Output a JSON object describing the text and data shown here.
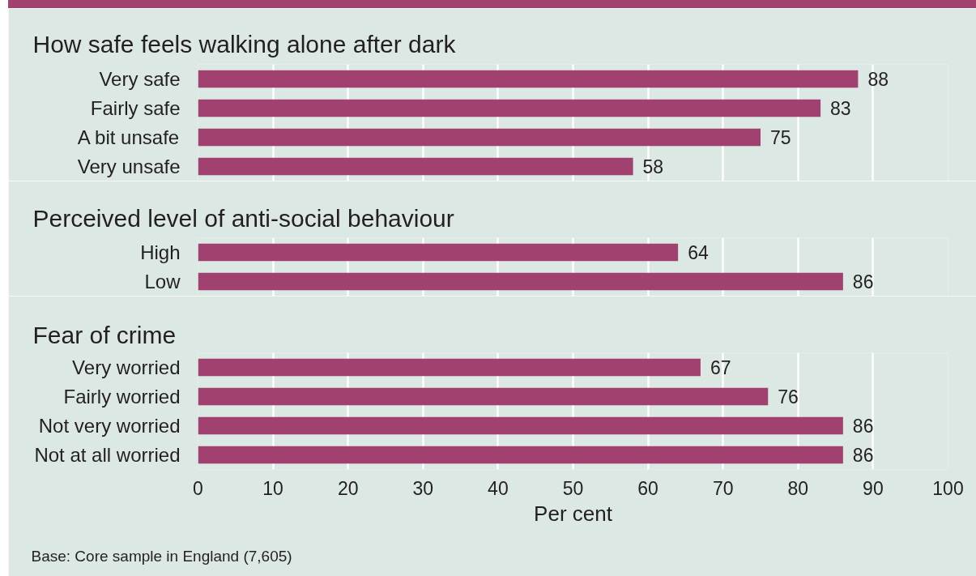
{
  "chart_data": [
    {
      "type": "bar",
      "orientation": "horizontal",
      "title": "How safe feels walking alone after dark",
      "categories": [
        "Very safe",
        "Fairly safe",
        "A bit unsafe",
        "Very unsafe"
      ],
      "values": [
        88,
        83,
        75,
        58
      ],
      "color": "#a1416f",
      "xlim": [
        0,
        100
      ],
      "xticks": [
        0,
        10,
        20,
        30,
        40,
        50,
        60,
        70,
        80,
        90,
        100
      ],
      "grid": "x",
      "data_labels": true,
      "tick_labels": "y"
    },
    {
      "type": "bar",
      "orientation": "horizontal",
      "title": "Perceived level of anti-social behaviour",
      "categories": [
        "High",
        "Low"
      ],
      "values": [
        64,
        86
      ],
      "color": "#a1416f",
      "xlim": [
        0,
        100
      ],
      "xticks": [
        0,
        10,
        20,
        30,
        40,
        50,
        60,
        70,
        80,
        90,
        100
      ],
      "grid": "x",
      "data_labels": true,
      "tick_labels": "y"
    },
    {
      "type": "bar",
      "orientation": "horizontal",
      "title": "Fear of crime",
      "categories": [
        "Very worried",
        "Fairly worried",
        "Not very worried",
        "Not at all worried"
      ],
      "values": [
        67,
        76,
        86,
        86
      ],
      "color": "#a1416f",
      "xlim": [
        0,
        100
      ],
      "xticks": [
        0,
        10,
        20,
        30,
        40,
        50,
        60,
        70,
        80,
        90,
        100
      ],
      "grid": "x",
      "data_labels": true,
      "xlabel": "Per cent",
      "annotations": [
        "Base: Core sample in England (7,605)"
      ]
    }
  ]
}
